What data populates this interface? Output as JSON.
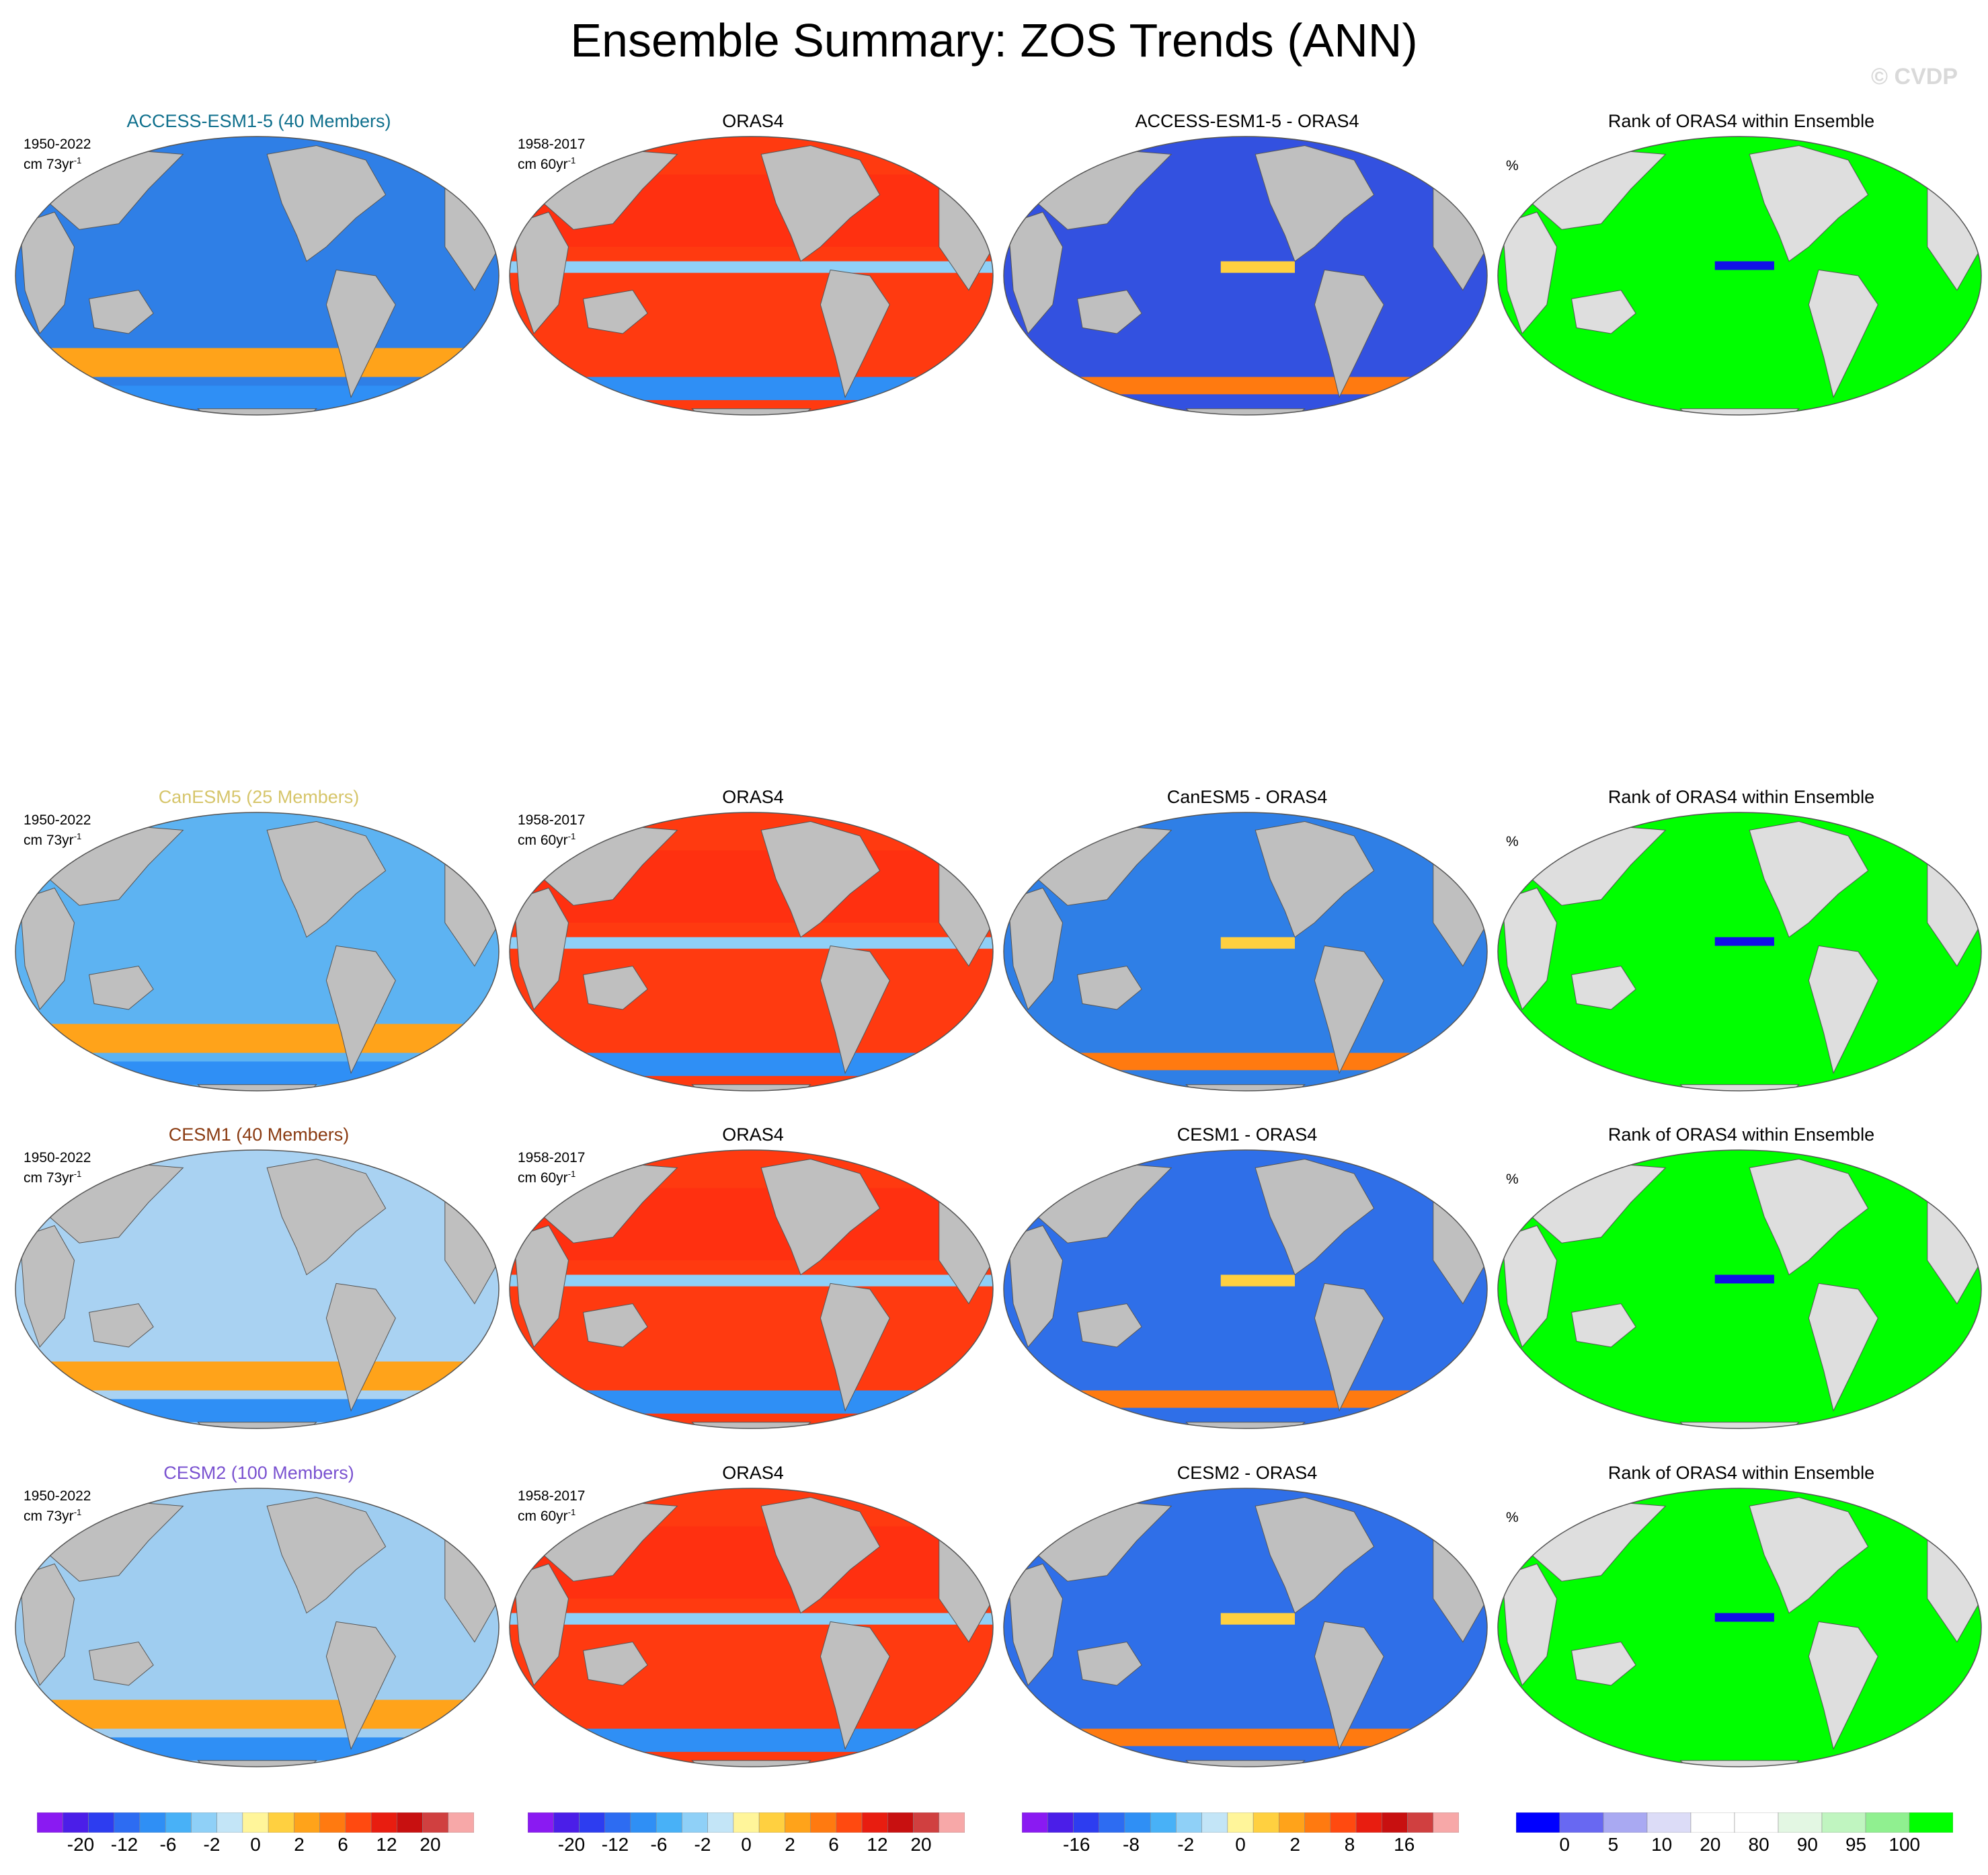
{
  "title": "Ensemble Summary: ZOS Trends (ANN)",
  "watermark": "© CVDP",
  "colors": {
    "land": "#bfbfbf",
    "land_light": "#dedede",
    "ocean_blue": "#2a7df0",
    "ocean_red": "#ff3a10",
    "ocean_purple_blue": "#3c4de0",
    "ocean_green": "#00ff00",
    "rank_blue": "#1010e8"
  },
  "rows": [
    {
      "model_title": "ACCESS-ESM1-5 (40 Members)",
      "model_color": "#0e6f8c",
      "model_years": "1950-2022",
      "model_units": "cm 73yr",
      "model_fill": "#2f7fe6",
      "obs_title": "ORAS4",
      "obs_years": "1958-2017",
      "obs_units": "cm 60yr",
      "diff_title": "ACCESS-ESM1-5 - ORAS4",
      "diff_fill": "#3351e0",
      "rank_title": "Rank of ORAS4 within Ensemble",
      "rank_units": "%"
    },
    {
      "model_title": "CanESM5 (25 Members)",
      "model_color": "#d6c56a",
      "model_years": "1950-2022",
      "model_units": "cm 73yr",
      "model_fill": "#5db3f2",
      "obs_title": "ORAS4",
      "obs_years": "1958-2017",
      "obs_units": "cm 60yr",
      "diff_title": "CanESM5 - ORAS4",
      "diff_fill": "#2f7fe6",
      "rank_title": "Rank of ORAS4 within Ensemble",
      "rank_units": "%"
    },
    {
      "model_title": "CESM1 (40 Members)",
      "model_color": "#8a3b12",
      "model_years": "1950-2022",
      "model_units": "cm 73yr",
      "model_fill": "#a9d2f2",
      "obs_title": "ORAS4",
      "obs_years": "1958-2017",
      "obs_units": "cm 60yr",
      "diff_title": "CESM1 - ORAS4",
      "diff_fill": "#2f6fe8",
      "rank_title": "Rank of ORAS4 within Ensemble",
      "rank_units": "%"
    },
    {
      "model_title": "CESM2 (100 Members)",
      "model_color": "#7a52d0",
      "model_years": "1950-2022",
      "model_units": "cm 73yr",
      "model_fill": "#9fcdf0",
      "obs_title": "ORAS4",
      "obs_years": "1958-2017",
      "obs_units": "cm 60yr",
      "diff_title": "CESM2 - ORAS4",
      "diff_fill": "#2f6fe8",
      "rank_title": "Rank of ORAS4 within Ensemble",
      "rank_units": "%"
    }
  ],
  "colorbars": [
    {
      "colors": [
        "#8a1af2",
        "#4b1ee8",
        "#2d3df0",
        "#2d6cf2",
        "#2f8ff5",
        "#48b1f7",
        "#8fd0f7",
        "#c3e5f7",
        "#fff59a",
        "#ffd040",
        "#ffa31a",
        "#ff7a10",
        "#ff4a10",
        "#e81d10",
        "#c81010",
        "#d04040",
        "#f7a8a8"
      ],
      "labels": [
        "-20",
        "-12",
        "-6",
        "-2",
        "0",
        "2",
        "6",
        "12",
        "20"
      ]
    },
    {
      "colors": [
        "#8a1af2",
        "#4b1ee8",
        "#2d3df0",
        "#2d6cf2",
        "#2f8ff5",
        "#48b1f7",
        "#8fd0f7",
        "#c3e5f7",
        "#fff59a",
        "#ffd040",
        "#ffa31a",
        "#ff7a10",
        "#ff4a10",
        "#e81d10",
        "#c81010",
        "#d04040",
        "#f7a8a8"
      ],
      "labels": [
        "-20",
        "-12",
        "-6",
        "-2",
        "0",
        "2",
        "6",
        "12",
        "20"
      ]
    },
    {
      "colors": [
        "#8a1af2",
        "#4b1ee8",
        "#2d3df0",
        "#2d6cf2",
        "#2f8ff5",
        "#48b1f7",
        "#8fd0f7",
        "#c3e5f7",
        "#fff59a",
        "#ffd040",
        "#ffa31a",
        "#ff7a10",
        "#ff4a10",
        "#e81d10",
        "#c81010",
        "#d04040",
        "#f7a8a8"
      ],
      "labels": [
        "-16",
        "-8",
        "-2",
        "0",
        "2",
        "8",
        "16"
      ]
    },
    {
      "colors": [
        "#0000ff",
        "#6868f2",
        "#a9a9f2",
        "#dcdcf7",
        "#ffffff",
        "#ffffff",
        "#e3f7e3",
        "#c0f5c0",
        "#90f090",
        "#00ff00"
      ],
      "labels": [
        "0",
        "5",
        "10",
        "20",
        "80",
        "90",
        "95",
        "100"
      ]
    }
  ]
}
